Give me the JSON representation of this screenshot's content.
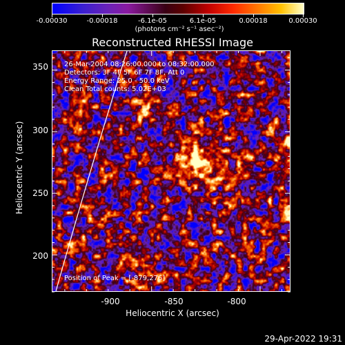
{
  "colorbar": {
    "labels": [
      "-0.00030",
      "-0.00018",
      "-6.1e-05",
      "6.1e-05",
      "0.00018",
      "0.00030"
    ],
    "unit": "(photons cm⁻² s⁻¹ asec⁻²)"
  },
  "chart_data": {
    "type": "heatmap",
    "title": "Reconstructed RHESSI Image",
    "xlabel": "Heliocentric X (arcsec)",
    "ylabel": "Heliocentric Y (arcsec)",
    "xlim": [
      -946,
      -836
    ],
    "ylim": [
      170,
      366
    ],
    "xticks": [
      -900,
      -850,
      -800
    ],
    "yticks": [
      200,
      250,
      300,
      350
    ],
    "color_range": [
      -0.0003,
      0.0003
    ],
    "colormap": [
      "#0000ff",
      "#6a22b8",
      "#3a0014",
      "#c00000",
      "#ff7a00",
      "#ffffc8"
    ],
    "peak": [
      -879,
      276
    ],
    "annotations": [
      "26-Mar-2004 08:26:00.000 to 08:32:00.000",
      "Detectors: 3F 4F 5F 6F 7F 8F, Att 0",
      "Energy Range: 25.0 - 50.0 keV",
      "Clean     Total counts: 5.02E+03"
    ],
    "peak_label": "Position of Peak = [-879,276]"
  },
  "footer": {
    "timestamp": "29-Apr-2022 19:31"
  }
}
